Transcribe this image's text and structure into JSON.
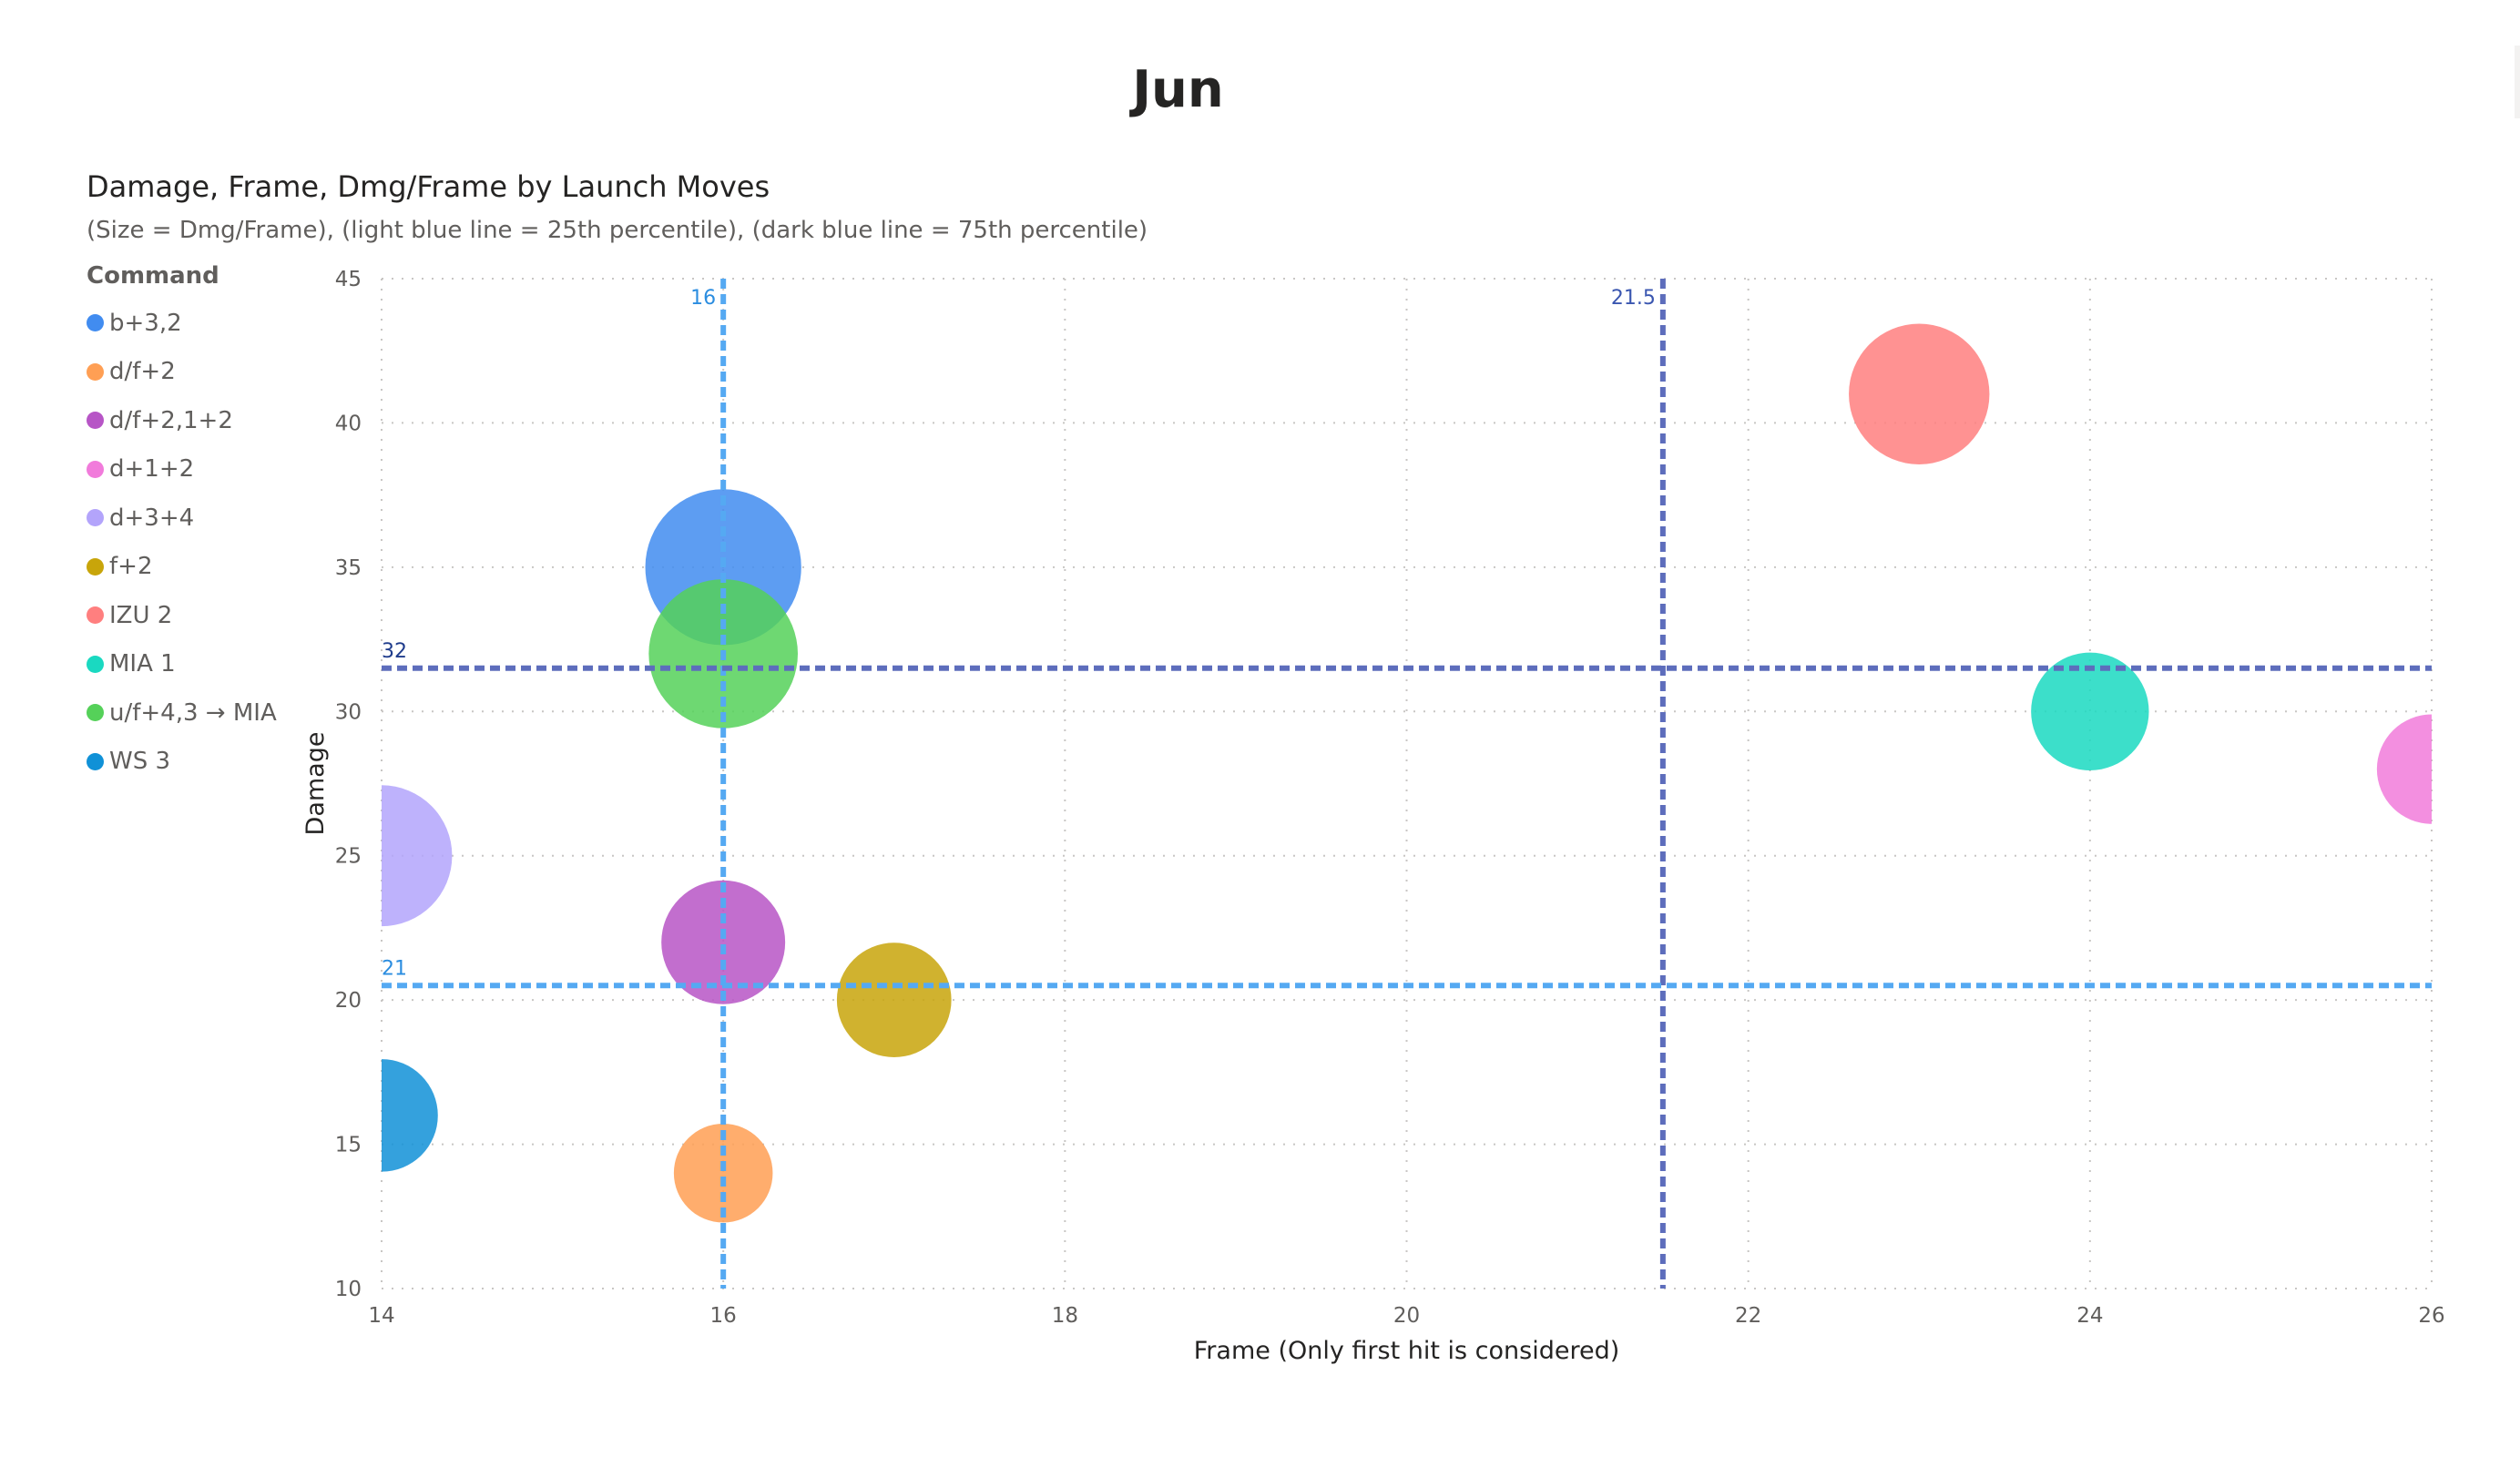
{
  "page": {
    "title": "Jun"
  },
  "visual": {
    "title": "Damage, Frame, Dmg/Frame by Launch Moves",
    "subtitle": "(Size = Dmg/Frame), (light blue line = 25th percentile), (dark blue line = 75th percentile)"
  },
  "legend": {
    "title": "Command",
    "items": [
      {
        "label": "b+3,2",
        "color": "#418CF0"
      },
      {
        "label": "d/f+2",
        "color": "#FF9F54"
      },
      {
        "label": "d/f+2,1+2",
        "color": "#B755C6"
      },
      {
        "label": "d+1+2",
        "color": "#F17BDB"
      },
      {
        "label": "d+3+4",
        "color": "#B3A4FB"
      },
      {
        "label": "f+2",
        "color": "#C8A50A"
      },
      {
        "label": "IZU 2",
        "color": "#FF7F7F"
      },
      {
        "label": "MIA 1",
        "color": "#1AD9C1"
      },
      {
        "label": "u/f+4,3 → MIA",
        "color": "#55D159"
      },
      {
        "label": "WS 3",
        "color": "#1091D7"
      }
    ]
  },
  "chart_data": {
    "type": "scatter",
    "xlabel": "Frame (Only first hit is considered)",
    "ylabel": "Damage",
    "size_label": "Dmg/Frame",
    "xlim": [
      14,
      26
    ],
    "ylim": [
      10,
      45
    ],
    "x_ticks": [
      "14",
      "16",
      "18",
      "20",
      "22",
      "24",
      "26"
    ],
    "y_ticks": [
      "10",
      "15",
      "20",
      "25",
      "30",
      "35",
      "40",
      "45"
    ],
    "grid": true,
    "legend_position": "left",
    "points": [
      {
        "name": "b+3,2",
        "x": 16,
        "y": 35,
        "size": 2.19,
        "color": "#418CF0"
      },
      {
        "name": "d/f+2",
        "x": 16,
        "y": 14,
        "size": 0.88,
        "color": "#FF9F54"
      },
      {
        "name": "d/f+2,1+2",
        "x": 16,
        "y": 22,
        "size": 1.38,
        "color": "#B755C6"
      },
      {
        "name": "d+1+2",
        "x": 26,
        "y": 28,
        "size": 1.08,
        "color": "#F17BDB"
      },
      {
        "name": "d+3+4",
        "x": 14,
        "y": 25,
        "size": 1.79,
        "color": "#B3A4FB"
      },
      {
        "name": "f+2",
        "x": 17,
        "y": 20,
        "size": 1.18,
        "color": "#C8A50A"
      },
      {
        "name": "IZU 2",
        "x": 23,
        "y": 41,
        "size": 1.78,
        "color": "#FF7F7F"
      },
      {
        "name": "MIA 1",
        "x": 24,
        "y": 30,
        "size": 1.25,
        "color": "#1AD9C1"
      },
      {
        "name": "u/f+4,3 → MIA",
        "x": 16,
        "y": 32,
        "size": 2.0,
        "color": "#55D159"
      },
      {
        "name": "WS 3",
        "x": 14,
        "y": 16,
        "size": 1.14,
        "color": "#1091D7"
      }
    ],
    "reference_lines": [
      {
        "axis": "x",
        "value": 16,
        "label": "16",
        "color": "#55A9F2",
        "meaning": "25th percentile"
      },
      {
        "axis": "x",
        "value": 21.5,
        "label": "21.5",
        "color": "#5D6DBC",
        "meaning": "75th percentile"
      },
      {
        "axis": "y",
        "value": 31.5,
        "label": "32",
        "color": "#5D6DBC",
        "meaning": "75th percentile"
      },
      {
        "axis": "y",
        "value": 20.5,
        "label": "21",
        "color": "#55A9F2",
        "meaning": "25th percentile"
      }
    ]
  }
}
